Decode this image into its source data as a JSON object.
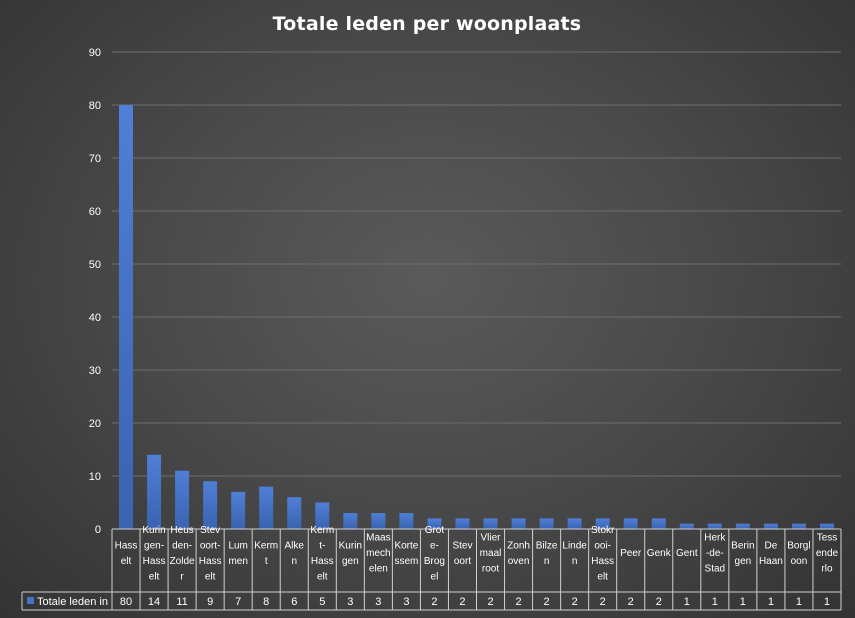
{
  "chart_data": {
    "type": "bar",
    "title": "Totale leden per woonplaats",
    "categories": [
      "Hasselt",
      "Kuringen-Hasselt",
      "Heusden-Zolder",
      "Stevoort-Hasselt",
      "Lummen",
      "Kermt",
      "Alken",
      "Kermt-Hasselt",
      "Kuringen",
      "Maasmechelen",
      "Kortessem",
      "Grote-Brogel",
      "Stevoort",
      "Vliermaalroot",
      "Zonhoven",
      "Bilzen",
      "Linden",
      "Stokrooi-Hasselt",
      "Peer",
      "Genk",
      "Gent",
      "Herk-de-Stad",
      "Beringen",
      "De Haan",
      "Borgloon",
      "Tessenderlo"
    ],
    "category_label_lines": [
      [
        "Hass",
        "elt"
      ],
      [
        "Kurin",
        "gen-",
        "Hass",
        "elt"
      ],
      [
        "Heus",
        "den-",
        "Zolde",
        "r"
      ],
      [
        "Stev",
        "oort-",
        "Hass",
        "elt"
      ],
      [
        "Lum",
        "men"
      ],
      [
        "Kerm",
        "t"
      ],
      [
        "Alke",
        "n"
      ],
      [
        "Kerm",
        "t-",
        "Hass",
        "elt"
      ],
      [
        "Kurin",
        "gen"
      ],
      [
        "Maas",
        "mech",
        "elen"
      ],
      [
        "Korte",
        "ssem"
      ],
      [
        "Grot",
        "e-",
        "Brog",
        "el"
      ],
      [
        "Stev",
        "oort"
      ],
      [
        "Vlier",
        "maal",
        "root"
      ],
      [
        "Zonh",
        "oven"
      ],
      [
        "Bilze",
        "n"
      ],
      [
        "Linde",
        "n"
      ],
      [
        "Stokr",
        "ooi-",
        "Hass",
        "elt"
      ],
      [
        "Peer"
      ],
      [
        "Genk"
      ],
      [
        "Gent"
      ],
      [
        "Herk",
        "-de-",
        "Stad"
      ],
      [
        "Berin",
        "gen"
      ],
      [
        "De",
        "Haan"
      ],
      [
        "Borgl",
        "oon"
      ],
      [
        "Tess",
        "ende",
        "rlo"
      ]
    ],
    "series": [
      {
        "name": "Totale leden in",
        "values": [
          80,
          14,
          11,
          9,
          7,
          8,
          6,
          5,
          3,
          3,
          3,
          2,
          2,
          2,
          2,
          2,
          2,
          2,
          2,
          2,
          1,
          1,
          1,
          1,
          1,
          1
        ]
      }
    ],
    "yticks": [
      "0",
      "10",
      "20",
      "30",
      "40",
      "50",
      "60",
      "70",
      "80",
      "90"
    ],
    "ylim": [
      0,
      90
    ],
    "grid": true,
    "legend": "data-table-left",
    "colors": {
      "bar": "#4472C4",
      "bar_light": "#5B8BDB",
      "grid": "#6e6e6e",
      "table_border": "#d0d0d0",
      "text": "#ffffff"
    }
  }
}
